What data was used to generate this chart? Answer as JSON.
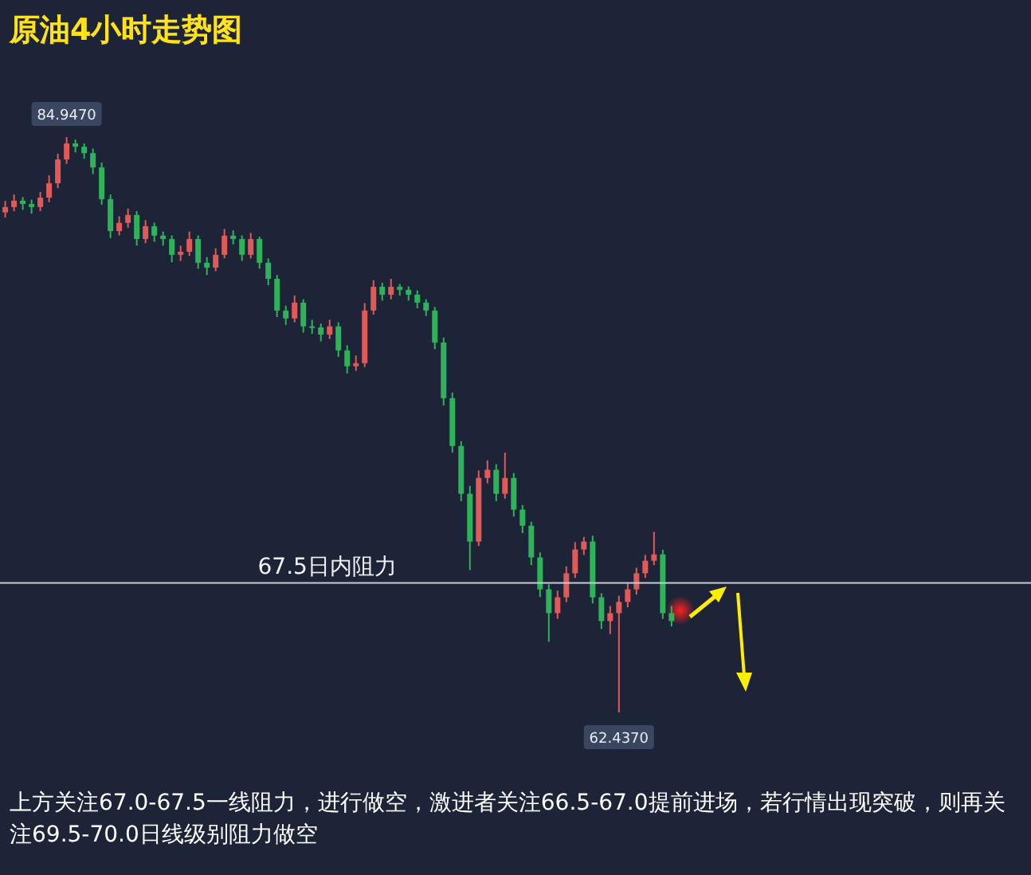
{
  "chart_data": {
    "type": "candlestick",
    "title": "原油4小时走势图",
    "categories": [
      null,
      null,
      null,
      null,
      null,
      null,
      null,
      null,
      null,
      null,
      null,
      null,
      null,
      null,
      null,
      null,
      null,
      null,
      null,
      null,
      null,
      null,
      null,
      null,
      null,
      null,
      null,
      null,
      null,
      null,
      null,
      null,
      null,
      null,
      null,
      null,
      null,
      null,
      null,
      null,
      null,
      null,
      null,
      null,
      null,
      null,
      null,
      null,
      null,
      null,
      null,
      null,
      null,
      null,
      null,
      null,
      null,
      null,
      null,
      null,
      null,
      null,
      null,
      null,
      null,
      null,
      null,
      null,
      null,
      null,
      null,
      null,
      null,
      null,
      null,
      null,
      null
    ],
    "ohlc": [
      [
        82.0,
        82.45,
        81.8,
        82.21
      ],
      [
        82.21,
        82.7,
        82.05,
        82.46
      ],
      [
        82.46,
        82.6,
        82.1,
        82.33
      ],
      [
        82.33,
        82.5,
        81.95,
        82.21
      ],
      [
        82.21,
        82.8,
        82.05,
        82.58
      ],
      [
        82.58,
        83.45,
        82.4,
        83.14
      ],
      [
        83.14,
        84.3,
        82.95,
        84.07
      ],
      [
        84.07,
        84.947,
        83.9,
        84.7
      ],
      [
        84.7,
        84.85,
        84.35,
        84.57
      ],
      [
        84.57,
        84.7,
        84.1,
        84.32
      ],
      [
        84.32,
        84.5,
        83.5,
        83.76
      ],
      [
        83.76,
        83.95,
        82.3,
        82.52
      ],
      [
        82.52,
        82.7,
        81.0,
        81.27
      ],
      [
        81.27,
        81.85,
        81.1,
        81.59
      ],
      [
        81.59,
        82.15,
        81.4,
        81.9
      ],
      [
        81.9,
        82.05,
        80.7,
        80.96
      ],
      [
        80.96,
        81.7,
        80.8,
        81.46
      ],
      [
        81.46,
        81.6,
        80.85,
        81.09
      ],
      [
        81.09,
        81.25,
        80.7,
        80.96
      ],
      [
        80.96,
        81.1,
        80.05,
        80.34
      ],
      [
        80.34,
        80.7,
        80.1,
        80.46
      ],
      [
        80.46,
        81.25,
        80.3,
        80.96
      ],
      [
        80.96,
        81.1,
        79.8,
        80.03
      ],
      [
        80.03,
        80.25,
        79.55,
        79.84
      ],
      [
        79.84,
        80.6,
        79.7,
        80.34
      ],
      [
        80.34,
        81.35,
        80.2,
        81.09
      ],
      [
        81.09,
        81.3,
        80.75,
        80.96
      ],
      [
        80.96,
        81.1,
        80.1,
        80.34
      ],
      [
        80.34,
        81.2,
        80.2,
        80.96
      ],
      [
        80.96,
        81.05,
        79.8,
        80.03
      ],
      [
        80.03,
        80.2,
        79.15,
        79.4
      ],
      [
        79.4,
        79.55,
        77.9,
        78.16
      ],
      [
        78.16,
        78.35,
        77.6,
        77.85
      ],
      [
        77.85,
        78.75,
        77.7,
        78.47
      ],
      [
        78.47,
        78.6,
        77.3,
        77.54
      ],
      [
        77.54,
        77.8,
        77.25,
        77.5
      ],
      [
        77.5,
        77.65,
        76.95,
        77.22
      ],
      [
        77.22,
        77.8,
        77.05,
        77.54
      ],
      [
        77.54,
        77.7,
        76.35,
        76.6
      ],
      [
        76.6,
        76.8,
        75.7,
        75.98
      ],
      [
        75.98,
        76.4,
        75.8,
        76.1
      ],
      [
        76.1,
        78.45,
        75.95,
        78.16
      ],
      [
        78.16,
        79.35,
        78.0,
        79.09
      ],
      [
        79.09,
        79.25,
        78.55,
        78.78
      ],
      [
        78.78,
        79.4,
        78.6,
        79.09
      ],
      [
        79.09,
        79.2,
        78.75,
        78.97
      ],
      [
        78.97,
        79.1,
        78.55,
        78.78
      ],
      [
        78.78,
        78.95,
        78.25,
        78.47
      ],
      [
        78.47,
        78.6,
        77.95,
        78.16
      ],
      [
        78.16,
        78.3,
        76.65,
        76.91
      ],
      [
        76.91,
        77.1,
        74.45,
        74.73
      ],
      [
        74.73,
        74.95,
        72.6,
        72.86
      ],
      [
        72.86,
        73.05,
        70.7,
        70.99
      ],
      [
        70.99,
        71.3,
        68.0,
        69.12
      ],
      [
        69.12,
        71.9,
        68.95,
        71.61
      ],
      [
        71.61,
        72.3,
        71.4,
        71.93
      ],
      [
        71.93,
        72.15,
        70.7,
        70.99
      ],
      [
        70.99,
        72.6,
        70.8,
        71.61
      ],
      [
        71.61,
        71.8,
        70.1,
        70.37
      ],
      [
        70.37,
        70.55,
        69.45,
        69.74
      ],
      [
        69.74,
        69.9,
        68.2,
        68.5
      ],
      [
        68.5,
        68.7,
        66.95,
        67.25
      ],
      [
        67.25,
        67.45,
        65.2,
        66.32
      ],
      [
        66.32,
        67.2,
        66.1,
        66.94
      ],
      [
        66.94,
        68.15,
        66.75,
        67.88
      ],
      [
        67.88,
        69.1,
        67.7,
        68.81
      ],
      [
        68.81,
        69.3,
        68.6,
        69.12
      ],
      [
        69.12,
        69.35,
        66.7,
        66.94
      ],
      [
        66.94,
        67.1,
        65.7,
        66.01
      ],
      [
        66.01,
        66.6,
        65.5,
        66.32
      ],
      [
        66.32,
        67.0,
        62.437,
        66.76
      ],
      [
        66.76,
        67.5,
        66.55,
        67.25
      ],
      [
        67.25,
        68.1,
        67.05,
        67.88
      ],
      [
        67.88,
        68.6,
        67.7,
        68.37
      ],
      [
        68.37,
        69.5,
        68.2,
        68.62
      ],
      [
        68.62,
        68.8,
        66.1,
        66.32
      ],
      [
        66.32,
        66.6,
        65.8,
        66.01
      ]
    ],
    "ref_lines": [
      {
        "axis": "y",
        "value": 67.5,
        "label": "67.5日内阻力",
        "color": "#c8ccd4"
      }
    ],
    "annotations": [
      {
        "text": "84.9470",
        "y": 84.947
      },
      {
        "text": "62.4370",
        "y": 62.437
      },
      "上方关注67.0-67.5一线阻力，进行做空，激进者关注66.5-67.0提前进场，若行情出现突破，则再关注69.5-70.0日线级别阻力做空"
    ]
  }
}
